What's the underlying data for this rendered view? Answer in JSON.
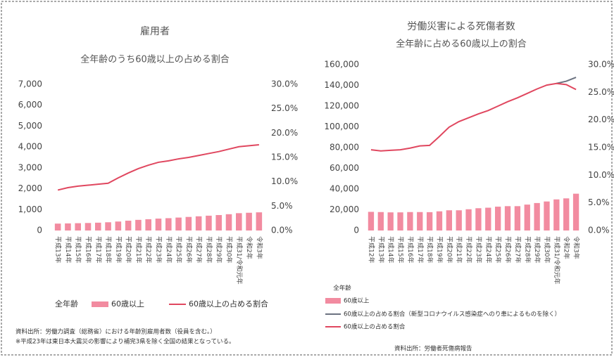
{
  "chart_data": [
    {
      "type": "bar",
      "title": "雇用者",
      "subtitle": "全年齢のうち60歳以上の占める割合",
      "categories": [
        "平成13年",
        "平成14年",
        "平成15年",
        "平成16年",
        "平成17年",
        "平成18年",
        "平成19年",
        "平成20年",
        "平成21年",
        "平成22年",
        "平成23年",
        "平成24年",
        "平成25年",
        "平成26年",
        "平成27年",
        "平成28年",
        "平成29年",
        "平成30年",
        "平成31/令和元年",
        "令和2年",
        "令和3年"
      ],
      "series": [
        {
          "name": "60歳以上",
          "color": "#f28ba0",
          "values": [
            330,
            340,
            350,
            360,
            375,
            395,
            430,
            470,
            510,
            540,
            570,
            590,
            620,
            650,
            680,
            710,
            740,
            780,
            830,
            850,
            870
          ]
        },
        {
          "name": "60歳以上の占める割合",
          "color": "#e0475f",
          "axis": "y2",
          "values": [
            8.3,
            8.8,
            9.1,
            9.3,
            9.5,
            9.7,
            10.8,
            11.8,
            12.7,
            13.4,
            14.0,
            14.3,
            14.7,
            15.0,
            15.4,
            15.8,
            16.2,
            16.7,
            17.2,
            17.4,
            17.6
          ]
        }
      ],
      "legend_note": "全年齢",
      "ylim": [
        0,
        7000
      ],
      "yticks": [
        0,
        {
          "value": 1000,
          "label": "1,000"
        },
        {
          "value": 2000,
          "label": "2,000"
        },
        {
          "value": 3000,
          "label": "3,000"
        },
        {
          "value": 4000,
          "label": "4,000"
        },
        {
          "value": 5000,
          "label": "5,000"
        },
        {
          "value": 6000,
          "label": "6,000"
        },
        {
          "value": 7000,
          "label": "7,000"
        }
      ],
      "y2lim": [
        0,
        30
      ],
      "y2ticks": [
        {
          "value": 0,
          "label": "0.0%"
        },
        {
          "value": 5,
          "label": "5.0%"
        },
        {
          "value": 10,
          "label": "10.0%"
        },
        {
          "value": 15,
          "label": "15.0%"
        },
        {
          "value": 20,
          "label": "20.0%"
        },
        {
          "value": 25,
          "label": "25.0%"
        },
        {
          "value": 30,
          "label": "30.0%"
        }
      ],
      "notes": [
        "資料出所：労働力調査（総務省）における年齢別雇用者数（役員を含む。）",
        "※平成23年は東日本大震災の影響により補完3県を除く全国の結果となっている。"
      ]
    },
    {
      "type": "bar",
      "title": "労働災害による死傷者数",
      "subtitle": "全年齢に占める60歳以上の割合",
      "categories": [
        "平成12年",
        "平成13年",
        "平成14年",
        "平成15年",
        "平成16年",
        "平成17年",
        "平成18年",
        "平成19年",
        "平成20年",
        "平成21年",
        "平成22年",
        "平成23年",
        "平成24年",
        "平成25年",
        "平成26年",
        "平成27年",
        "平成28年",
        "平成29年",
        "平成30年",
        "平成31/令和元年",
        "令和2年",
        "令和3年"
      ],
      "series": [
        {
          "name": "60歳以上",
          "color": "#f28ba0",
          "values": [
            18000,
            17800,
            17500,
            17500,
            17800,
            17800,
            17700,
            18500,
            19500,
            19500,
            20500,
            21500,
            22000,
            23000,
            23500,
            23500,
            25000,
            26500,
            28000,
            30000,
            31000,
            35500
          ]
        },
        {
          "name": "60歳以上の占める割合（新型コロナウイルス感染症へのり患によるものを除く）",
          "color": "#6b7280",
          "axis": "y2",
          "values": [
            null,
            null,
            null,
            null,
            null,
            null,
            null,
            null,
            null,
            null,
            null,
            null,
            null,
            null,
            null,
            null,
            null,
            null,
            null,
            26.6,
            27.0,
            27.7
          ]
        },
        {
          "name": "60歳以上の占める割合",
          "color": "#e0475f",
          "axis": "y2",
          "values": [
            14.6,
            14.4,
            14.5,
            14.6,
            14.9,
            15.3,
            15.4,
            17.0,
            18.7,
            19.7,
            20.4,
            21.1,
            21.7,
            22.5,
            23.3,
            24.0,
            24.8,
            25.6,
            26.3,
            26.6,
            26.4,
            25.5
          ]
        }
      ],
      "legend_note": "全年齢",
      "ylim": [
        0,
        160000
      ],
      "yticks": [
        0,
        {
          "value": 20000,
          "label": "20,000"
        },
        {
          "value": 40000,
          "label": "40,000"
        },
        {
          "value": 60000,
          "label": "60,000"
        },
        {
          "value": 80000,
          "label": "80,000"
        },
        {
          "value": 100000,
          "label": "100,000"
        },
        {
          "value": 120000,
          "label": "120,000"
        },
        {
          "value": 140000,
          "label": "140,000"
        },
        {
          "value": 160000,
          "label": "160,000"
        }
      ],
      "y2lim": [
        0,
        30
      ],
      "y2ticks": [
        {
          "value": 0,
          "label": "0.0%"
        },
        {
          "value": 5,
          "label": "5.0%"
        },
        {
          "value": 10,
          "label": "10.0%"
        },
        {
          "value": 15,
          "label": "15.0%"
        },
        {
          "value": 20,
          "label": "20.0%"
        },
        {
          "value": 25,
          "label": "25.0%"
        },
        {
          "value": 30,
          "label": "30.0%"
        }
      ],
      "notes": [
        "資料出所：労働者死傷病報告"
      ]
    }
  ]
}
